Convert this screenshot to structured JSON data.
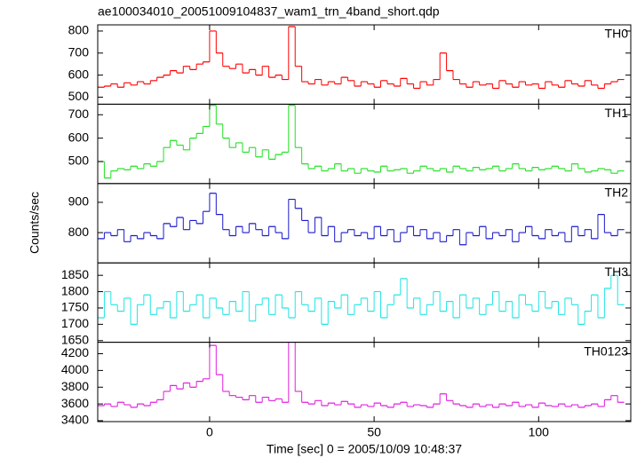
{
  "figure": {
    "title": "ae100034010_20051009104837_wam1_trn_4band_short.qdp",
    "x_label": "Time [sec] 0 = 2005/10/09 10:48:37",
    "y_label": "Counts/sec"
  },
  "chart_data": [
    {
      "type": "line",
      "xlim": [
        -34,
        128
      ],
      "xticks": [
        0,
        50,
        100
      ],
      "ylim": [
        468,
        828
      ],
      "yticks": [
        500,
        600,
        700,
        800
      ],
      "x": [
        -33,
        -31,
        -29,
        -27,
        -25,
        -23,
        -21,
        -19,
        -17,
        -15,
        -13,
        -11,
        -9,
        -7,
        -5,
        -3,
        -1,
        1,
        3,
        5,
        7,
        9,
        11,
        13,
        15,
        17,
        19,
        21,
        23,
        25,
        27,
        29,
        31,
        33,
        35,
        37,
        39,
        41,
        43,
        45,
        47,
        49,
        51,
        53,
        55,
        57,
        59,
        61,
        63,
        65,
        67,
        69,
        71,
        73,
        75,
        77,
        79,
        81,
        83,
        85,
        87,
        89,
        91,
        93,
        95,
        97,
        99,
        101,
        103,
        105,
        107,
        109,
        111,
        113,
        115,
        117,
        119,
        121,
        123,
        125
      ],
      "series": [
        {
          "name": "TH0",
          "color": "#ff0000",
          "values": [
            545,
            550,
            560,
            545,
            565,
            555,
            570,
            560,
            575,
            590,
            600,
            620,
            610,
            640,
            625,
            650,
            660,
            800,
            700,
            640,
            630,
            650,
            610,
            625,
            600,
            640,
            590,
            600,
            580,
            820,
            640,
            570,
            560,
            580,
            555,
            570,
            560,
            590,
            575,
            550,
            570,
            560,
            545,
            575,
            560,
            550,
            585,
            560,
            540,
            570,
            555,
            580,
            700,
            620,
            580,
            560,
            545,
            570,
            555,
            560,
            540,
            575,
            560,
            545,
            570,
            555,
            560,
            540,
            570,
            555,
            545,
            575,
            560,
            550,
            575,
            555,
            540,
            560,
            570,
            580
          ]
        }
      ]
    },
    {
      "type": "line",
      "xlim": [
        -34,
        128
      ],
      "xticks": [
        0,
        50,
        100
      ],
      "ylim": [
        406,
        745
      ],
      "yticks": [
        500,
        600,
        700
      ],
      "x": [
        -33,
        -31,
        -29,
        -27,
        -25,
        -23,
        -21,
        -19,
        -17,
        -15,
        -13,
        -11,
        -9,
        -7,
        -5,
        -3,
        -1,
        1,
        3,
        5,
        7,
        9,
        11,
        13,
        15,
        17,
        19,
        21,
        23,
        25,
        27,
        29,
        31,
        33,
        35,
        37,
        39,
        41,
        43,
        45,
        47,
        49,
        51,
        53,
        55,
        57,
        59,
        61,
        63,
        65,
        67,
        69,
        71,
        73,
        75,
        77,
        79,
        81,
        83,
        85,
        87,
        89,
        91,
        93,
        95,
        97,
        99,
        101,
        103,
        105,
        107,
        109,
        111,
        113,
        115,
        117,
        119,
        121,
        123,
        125
      ],
      "series": [
        {
          "name": "TH1",
          "color": "#22e022",
          "values": [
            500,
            430,
            460,
            470,
            465,
            480,
            470,
            490,
            480,
            500,
            560,
            590,
            570,
            550,
            600,
            620,
            650,
            740,
            660,
            600,
            560,
            580,
            540,
            560,
            520,
            550,
            510,
            530,
            540,
            740,
            560,
            490,
            470,
            480,
            460,
            470,
            490,
            460,
            470,
            450,
            470,
            460,
            455,
            480,
            460,
            465,
            470,
            450,
            460,
            480,
            470,
            460,
            470,
            455,
            480,
            470,
            460,
            475,
            465,
            470,
            480,
            460,
            470,
            490,
            470,
            460,
            475,
            465,
            470,
            480,
            470,
            460,
            490,
            470,
            455,
            460,
            470,
            465,
            450,
            460
          ]
        }
      ]
    },
    {
      "type": "line",
      "xlim": [
        -34,
        128
      ],
      "xticks": [
        0,
        50,
        100
      ],
      "ylim": [
        700,
        962
      ],
      "yticks": [
        800,
        900
      ],
      "x": [
        -33,
        -31,
        -29,
        -27,
        -25,
        -23,
        -21,
        -19,
        -17,
        -15,
        -13,
        -11,
        -9,
        -7,
        -5,
        -3,
        -1,
        1,
        3,
        5,
        7,
        9,
        11,
        13,
        15,
        17,
        19,
        21,
        23,
        25,
        27,
        29,
        31,
        33,
        35,
        37,
        39,
        41,
        43,
        45,
        47,
        49,
        51,
        53,
        55,
        57,
        59,
        61,
        63,
        65,
        67,
        69,
        71,
        73,
        75,
        77,
        79,
        81,
        83,
        85,
        87,
        89,
        91,
        93,
        95,
        97,
        99,
        101,
        103,
        105,
        107,
        109,
        111,
        113,
        115,
        117,
        119,
        121,
        123,
        125
      ],
      "series": [
        {
          "name": "TH2",
          "color": "#1a1acc",
          "values": [
            780,
            800,
            790,
            810,
            770,
            790,
            780,
            800,
            790,
            780,
            830,
            820,
            850,
            810,
            840,
            830,
            870,
            930,
            860,
            810,
            790,
            820,
            800,
            830,
            810,
            790,
            820,
            800,
            780,
            910,
            880,
            840,
            800,
            850,
            790,
            820,
            770,
            800,
            810,
            790,
            800,
            780,
            820,
            790,
            810,
            770,
            800,
            820,
            790,
            810,
            780,
            800,
            770,
            790,
            810,
            760,
            800,
            790,
            820,
            780,
            800,
            790,
            810,
            770,
            800,
            820,
            790,
            780,
            810,
            790,
            800,
            770,
            820,
            790,
            810,
            780,
            860,
            800,
            790,
            810
          ]
        }
      ]
    },
    {
      "type": "line",
      "xlim": [
        -34,
        128
      ],
      "xticks": [
        0,
        50,
        100
      ],
      "ylim": [
        1645,
        1888
      ],
      "yticks": [
        1650,
        1700,
        1750,
        1800,
        1850
      ],
      "x": [
        -33,
        -31,
        -29,
        -27,
        -25,
        -23,
        -21,
        -19,
        -17,
        -15,
        -13,
        -11,
        -9,
        -7,
        -5,
        -3,
        -1,
        1,
        3,
        5,
        7,
        9,
        11,
        13,
        15,
        17,
        19,
        21,
        23,
        25,
        27,
        29,
        31,
        33,
        35,
        37,
        39,
        41,
        43,
        45,
        47,
        49,
        51,
        53,
        55,
        57,
        59,
        61,
        63,
        65,
        67,
        69,
        71,
        73,
        75,
        77,
        79,
        81,
        83,
        85,
        87,
        89,
        91,
        93,
        95,
        97,
        99,
        101,
        103,
        105,
        107,
        109,
        111,
        113,
        115,
        117,
        119,
        121,
        123,
        125
      ],
      "series": [
        {
          "name": "TH3",
          "color": "#22e5e5",
          "values": [
            1720,
            1800,
            1760,
            1740,
            1780,
            1700,
            1760,
            1790,
            1730,
            1750,
            1770,
            1720,
            1800,
            1740,
            1760,
            1790,
            1720,
            1780,
            1750,
            1730,
            1770,
            1740,
            1800,
            1710,
            1760,
            1780,
            1730,
            1790,
            1750,
            1720,
            1800,
            1760,
            1740,
            1780,
            1700,
            1770,
            1750,
            1790,
            1730,
            1760,
            1780,
            1740,
            1800,
            1720,
            1760,
            1790,
            1840,
            1750,
            1780,
            1730,
            1760,
            1800,
            1740,
            1770,
            1720,
            1790,
            1750,
            1780,
            1730,
            1760,
            1800,
            1740,
            1770,
            1720,
            1790,
            1760,
            1740,
            1800,
            1750,
            1770,
            1730,
            1780,
            1760,
            1700,
            1740,
            1790,
            1720,
            1810,
            1850,
            1760
          ]
        }
      ]
    },
    {
      "type": "line",
      "xlim": [
        -34,
        128
      ],
      "xticks": [
        0,
        50,
        100
      ],
      "ylim": [
        3389,
        4337
      ],
      "yticks": [
        3400,
        3600,
        3800,
        4000,
        4200
      ],
      "x": [
        -33,
        -31,
        -29,
        -27,
        -25,
        -23,
        -21,
        -19,
        -17,
        -15,
        -13,
        -11,
        -9,
        -7,
        -5,
        -3,
        -1,
        1,
        3,
        5,
        7,
        9,
        11,
        13,
        15,
        17,
        19,
        21,
        23,
        25,
        27,
        29,
        31,
        33,
        35,
        37,
        39,
        41,
        43,
        45,
        47,
        49,
        51,
        53,
        55,
        57,
        59,
        61,
        63,
        65,
        67,
        69,
        71,
        73,
        75,
        77,
        79,
        81,
        83,
        85,
        87,
        89,
        91,
        93,
        95,
        97,
        99,
        101,
        103,
        105,
        107,
        109,
        111,
        113,
        115,
        117,
        119,
        121,
        123,
        125
      ],
      "series": [
        {
          "name": "TH0123",
          "color": "#e020e0",
          "values": [
            3580,
            3600,
            3570,
            3620,
            3590,
            3560,
            3600,
            3580,
            3620,
            3650,
            3750,
            3820,
            3780,
            3850,
            3800,
            3870,
            3900,
            4300,
            3950,
            3750,
            3700,
            3680,
            3650,
            3700,
            3620,
            3680,
            3640,
            3660,
            3620,
            4350,
            3750,
            3620,
            3600,
            3640,
            3580,
            3610,
            3590,
            3630,
            3600,
            3560,
            3590,
            3570,
            3610,
            3580,
            3560,
            3600,
            3620,
            3570,
            3590,
            3580,
            3560,
            3600,
            3720,
            3640,
            3600,
            3580,
            3560,
            3600,
            3570,
            3590,
            3560,
            3600,
            3580,
            3620,
            3570,
            3590,
            3560,
            3610,
            3580,
            3570,
            3600,
            3570,
            3590,
            3560,
            3580,
            3600,
            3570,
            3650,
            3700,
            3620
          ]
        }
      ]
    }
  ]
}
